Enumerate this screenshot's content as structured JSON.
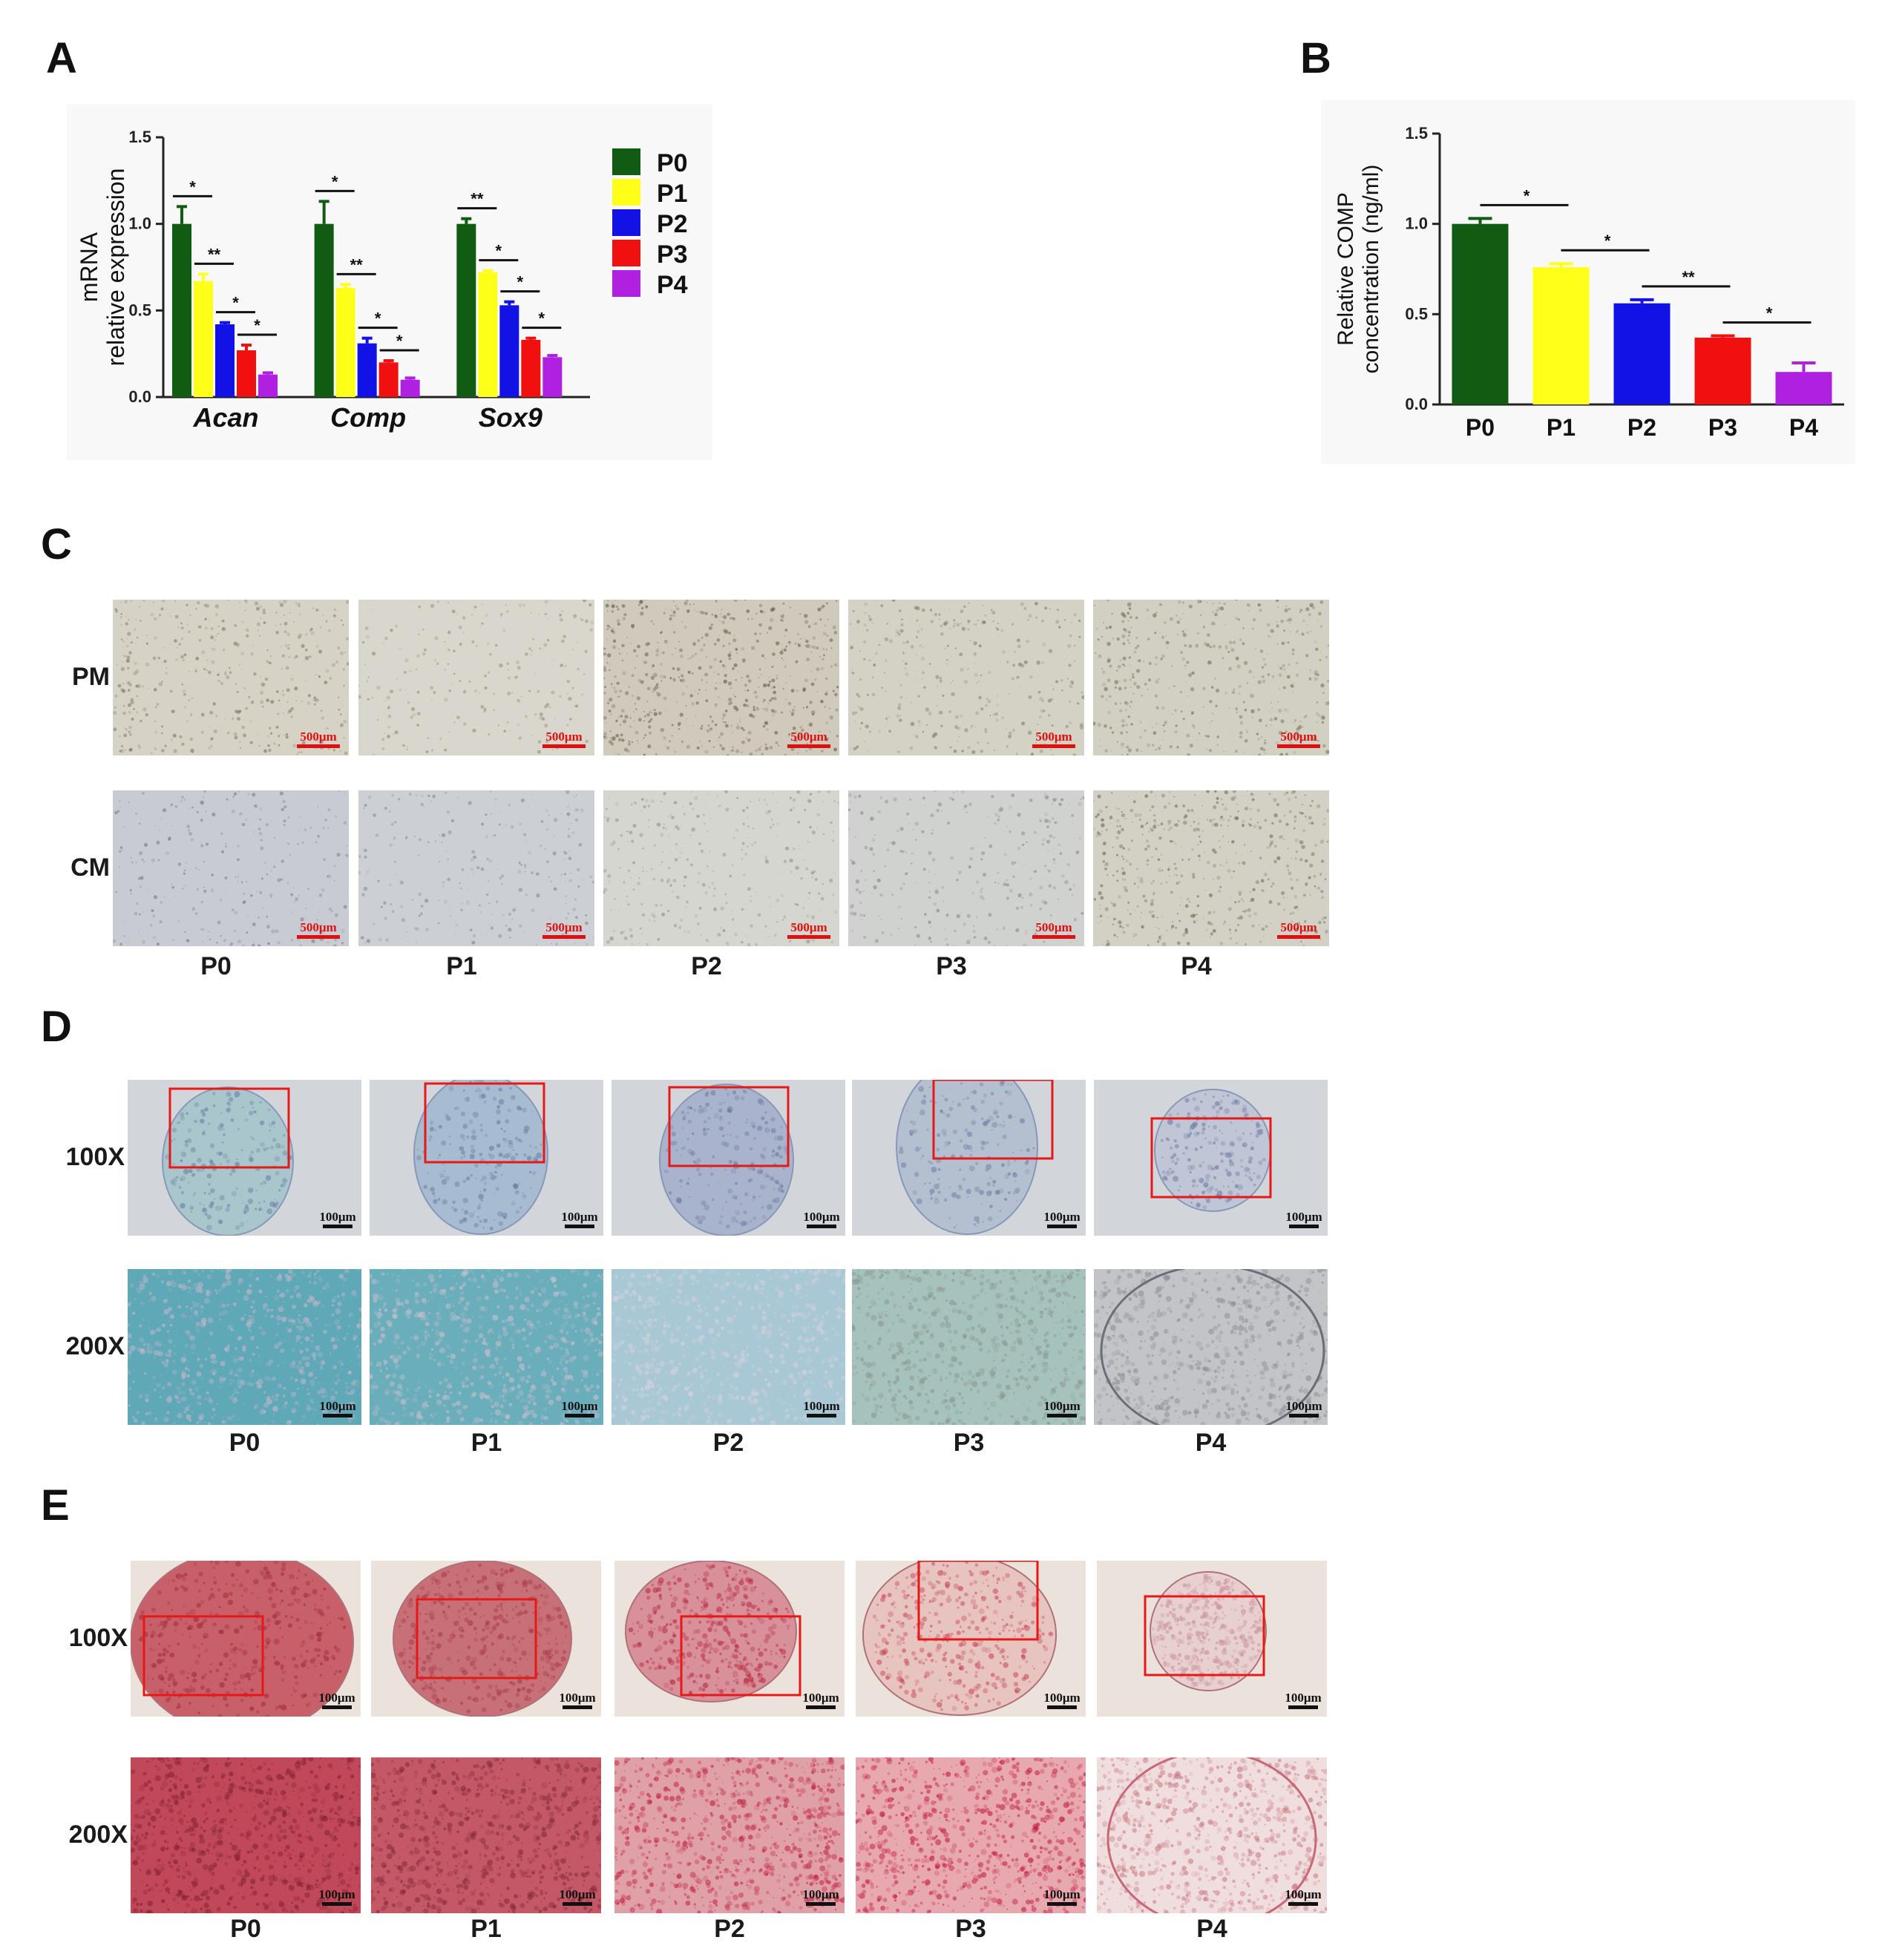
{
  "panels": {
    "A": "A",
    "B": "B",
    "C": "C",
    "D": "D",
    "E": "E"
  },
  "chart_data": [
    {
      "type": "bar",
      "panel": "A",
      "categories": [
        "Acan",
        "Comp",
        "Sox9"
      ],
      "series": [
        {
          "name": "P0",
          "color": "#0f5c12",
          "values": [
            1.0,
            1.0,
            1.0
          ],
          "errors": [
            0.1,
            0.13,
            0.03
          ]
        },
        {
          "name": "P1",
          "color": "#ffff1a",
          "values": [
            0.67,
            0.63,
            0.72
          ],
          "errors": [
            0.04,
            0.02,
            0.01
          ]
        },
        {
          "name": "P2",
          "color": "#1212e6",
          "values": [
            0.42,
            0.31,
            0.53
          ],
          "errors": [
            0.01,
            0.03,
            0.02
          ]
        },
        {
          "name": "P3",
          "color": "#f01010",
          "values": [
            0.27,
            0.2,
            0.33
          ],
          "errors": [
            0.03,
            0.01,
            0.01
          ]
        },
        {
          "name": "P4",
          "color": "#b020e0",
          "values": [
            0.13,
            0.1,
            0.23
          ],
          "errors": [
            0.01,
            0.01,
            0.01
          ]
        }
      ],
      "significance": [
        [
          "*",
          "**",
          "*",
          "*"
        ],
        [
          "*",
          "**",
          "*",
          "*"
        ],
        [
          "**",
          "*",
          "*",
          "*"
        ]
      ],
      "ylabel_line1": "mRNA",
      "ylabel_line2": "relative expression",
      "ylim": [
        0,
        1.5
      ],
      "yticks": [
        "0.0",
        "0.5",
        "1.0",
        "1.5"
      ],
      "legend_position": "right"
    },
    {
      "type": "bar",
      "panel": "B",
      "categories": [
        "P0",
        "P1",
        "P2",
        "P3",
        "P4"
      ],
      "values": [
        1.0,
        0.76,
        0.56,
        0.37,
        0.18
      ],
      "errors": [
        0.03,
        0.02,
        0.02,
        0.01,
        0.05
      ],
      "colors": [
        "#0f5c12",
        "#ffff1a",
        "#1212e6",
        "#f01010",
        "#b020e0"
      ],
      "significance": [
        "*",
        "*",
        "**",
        "*"
      ],
      "ylabel_line1": "Relative COMP",
      "ylabel_line2": "concentration (ng/ml)",
      "ylim": [
        0,
        1.5
      ],
      "yticks": [
        "0.0",
        "0.5",
        "1.0",
        "1.5"
      ]
    }
  ],
  "panelC": {
    "rows": [
      "PM",
      "CM"
    ],
    "columns": [
      "P0",
      "P1",
      "P2",
      "P3",
      "P4"
    ],
    "scale_bar": "500μm"
  },
  "panelD": {
    "rows": [
      "100X",
      "200X"
    ],
    "columns": [
      "P0",
      "P1",
      "P2",
      "P3",
      "P4"
    ],
    "scale_bar": "100μm"
  },
  "panelE": {
    "rows": [
      "100X",
      "200X"
    ],
    "columns": [
      "P0",
      "P1",
      "P2",
      "P3",
      "P4"
    ],
    "scale_bar": "100μm"
  }
}
